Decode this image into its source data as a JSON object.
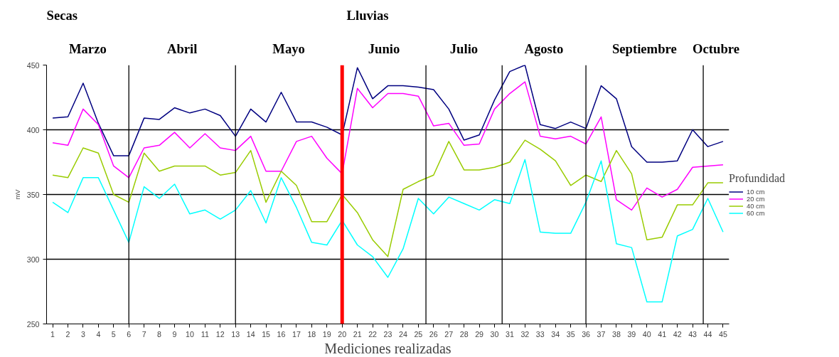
{
  "chart_data": {
    "type": "line",
    "xlabel": "Mediciones realizadas",
    "ylabel": "mV",
    "legend_title": "Profundidad",
    "legend": "right",
    "grid": "y",
    "x": [
      1,
      2,
      3,
      4,
      5,
      6,
      7,
      8,
      9,
      10,
      11,
      12,
      13,
      14,
      15,
      16,
      17,
      18,
      19,
      20,
      21,
      22,
      23,
      24,
      25,
      26,
      27,
      28,
      29,
      30,
      31,
      32,
      33,
      34,
      35,
      36,
      37,
      38,
      39,
      40,
      41,
      42,
      43,
      44,
      45
    ],
    "xlim": [
      0.6,
      45.4
    ],
    "xticks": [
      1,
      2,
      3,
      4,
      5,
      6,
      7,
      8,
      9,
      10,
      11,
      12,
      13,
      14,
      15,
      16,
      17,
      18,
      19,
      20,
      21,
      22,
      23,
      24,
      25,
      26,
      27,
      28,
      29,
      30,
      31,
      32,
      33,
      34,
      35,
      36,
      37,
      38,
      39,
      40,
      41,
      42,
      43,
      44,
      45
    ],
    "ylim": [
      250,
      450
    ],
    "yticks": [
      250,
      300,
      350,
      400,
      450
    ],
    "series": [
      {
        "name": "10 cm",
        "color": "#000080",
        "values": [
          409,
          410,
          436,
          405,
          380,
          380,
          409,
          408,
          417,
          413,
          416,
          411,
          395,
          416,
          406,
          429,
          406,
          406,
          402,
          396,
          448,
          424,
          434,
          434,
          433,
          431,
          416,
          392,
          396,
          423,
          445,
          450,
          404,
          401,
          406,
          401,
          434,
          424,
          387,
          375,
          375,
          376,
          400,
          387,
          391
        ]
      },
      {
        "name": "20 cm",
        "color": "#ff00ff",
        "values": [
          390,
          388,
          416,
          404,
          372,
          363,
          386,
          388,
          398,
          386,
          397,
          386,
          384,
          395,
          368,
          368,
          391,
          395,
          378,
          366,
          432,
          417,
          428,
          428,
          426,
          403,
          405,
          388,
          389,
          416,
          428,
          437,
          395,
          393,
          395,
          389,
          410,
          346,
          338,
          355,
          348,
          354,
          371,
          372,
          373
        ]
      },
      {
        "name": "40 cm",
        "color": "#99cc00",
        "values": [
          365,
          363,
          386,
          382,
          350,
          344,
          382,
          368,
          372,
          372,
          372,
          365,
          367,
          384,
          344,
          368,
          357,
          329,
          329,
          350,
          336,
          315,
          302,
          354,
          360,
          365,
          391,
          369,
          369,
          371,
          375,
          392,
          385,
          376,
          357,
          365,
          360,
          384,
          366,
          315,
          317,
          342,
          342,
          359,
          359
        ]
      },
      {
        "name": "60 cm",
        "color": "#00ffff",
        "values": [
          344,
          336,
          363,
          363,
          338,
          313,
          356,
          347,
          358,
          335,
          338,
          331,
          338,
          353,
          328,
          363,
          340,
          313,
          311,
          330,
          311,
          302,
          286,
          308,
          347,
          335,
          348,
          343,
          338,
          346,
          343,
          377,
          321,
          320,
          320,
          344,
          376,
          312,
          309,
          267,
          267,
          318,
          323,
          347,
          321
        ]
      }
    ],
    "ref_lines": [
      {
        "axis": "x",
        "value": 6,
        "color": "#000000"
      },
      {
        "axis": "x",
        "value": 13,
        "color": "#000000"
      },
      {
        "axis": "x",
        "value": 20,
        "color": "#ff0000"
      },
      {
        "axis": "x",
        "value": 25.5,
        "color": "#000000"
      },
      {
        "axis": "x",
        "value": 30.5,
        "color": "#000000"
      },
      {
        "axis": "x",
        "value": 36,
        "color": "#000000"
      },
      {
        "axis": "x",
        "value": 43.7,
        "color": "#000000"
      }
    ],
    "annotations": [
      "Secas",
      "Lluvias",
      "Marzo",
      "Abril",
      "Mayo",
      "Junio",
      "Julio",
      "Agosto",
      "Septiembre",
      "Octubre"
    ]
  }
}
